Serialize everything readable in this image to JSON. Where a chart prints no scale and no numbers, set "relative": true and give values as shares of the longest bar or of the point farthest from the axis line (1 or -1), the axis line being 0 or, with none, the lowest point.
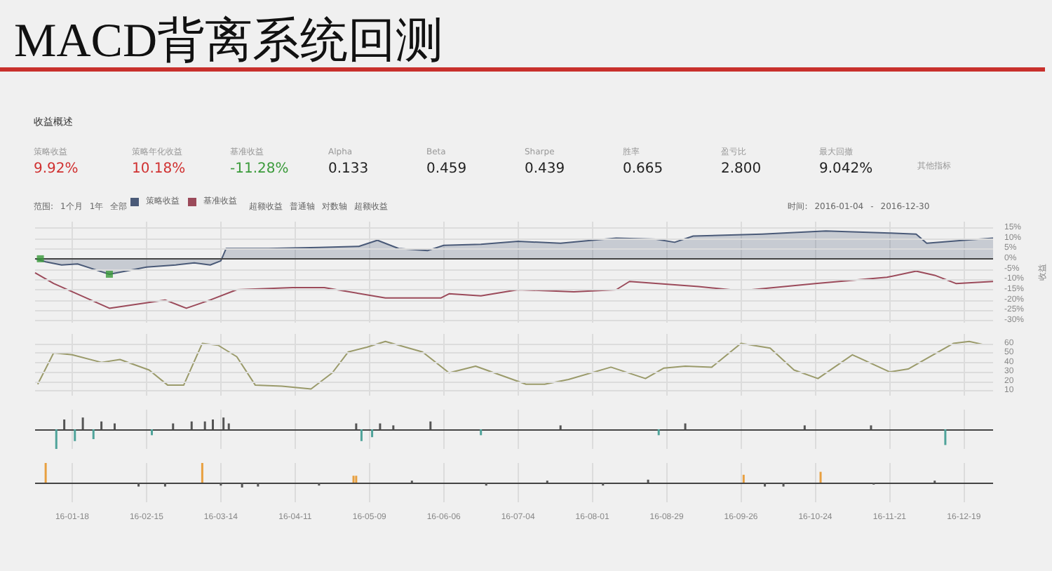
{
  "chart_data": [
    {
      "type": "other",
      "title": "MACD背离系统回测",
      "subtitle": "收益概述",
      "annotations": [
        "策略收益\n9.92%",
        "策略年化收益\n10.18%",
        "基准收益\n-11.28%",
        "Alpha\n0.133",
        "Beta\n0.459",
        "Sharpe\n0.439",
        "胜率\n0.665",
        "盈亏比\n2.800",
        "最大回撤\n9.042%",
        "其他指标"
      ]
    },
    {
      "type": "area",
      "legend": "top left",
      "grid": true,
      "tick_labels": "y",
      "y2label": "收益",
      "annotations": [
        "范围:",
        "1个月",
        "1年",
        "全部",
        "超额收益",
        "普通轴",
        "对数轴",
        "超额收益",
        "时间:",
        "2016-01-04",
        "-",
        "2016-12-30"
      ],
      "xlim": [
        "2016-01-04",
        "2016-12-30"
      ],
      "xticks": [
        "2016-01-18",
        "2016-02-15",
        "2016-03-14",
        "2016-04-11",
        "2016-05-09",
        "2016-06-06",
        "2016-07-04",
        "2016-08-01",
        "2016-08-29",
        "2016-09-26",
        "2016-10-24",
        "2016-11-21",
        "2016-12-19"
      ],
      "ylim": [
        -31,
        18
      ],
      "yticks": [
        {
          "value": -30,
          "label": "-30%"
        },
        {
          "value": -25,
          "label": "-25%"
        },
        {
          "value": -20,
          "label": "-20%"
        },
        {
          "value": -15,
          "label": "-15%"
        },
        {
          "value": -10,
          "label": "-10%"
        },
        {
          "value": -5,
          "label": "-5%"
        },
        {
          "value": 0,
          "label": "0%"
        },
        {
          "value": 5,
          "label": "5%"
        },
        {
          "value": 10,
          "label": "10%"
        },
        {
          "value": 15,
          "label": "15%"
        }
      ],
      "series": [
        {
          "name": "策略收益",
          "color": "#4a5a78",
          "x": [
            "2016-01-04",
            "2016-01-08",
            "2016-01-14",
            "2016-01-20",
            "2016-01-26",
            "2016-02-01",
            "2016-02-15",
            "2016-02-26",
            "2016-03-04",
            "2016-03-10",
            "2016-03-14",
            "2016-03-16",
            "2016-04-01",
            "2016-04-20",
            "2016-05-05",
            "2016-05-12",
            "2016-05-20",
            "2016-05-31",
            "2016-06-06",
            "2016-06-20",
            "2016-07-04",
            "2016-07-20",
            "2016-08-01",
            "2016-08-10",
            "2016-08-25",
            "2016-09-01",
            "2016-09-08",
            "2016-10-04",
            "2016-10-28",
            "2016-11-21",
            "2016-12-01",
            "2016-12-05",
            "2016-12-19",
            "2016-12-30"
          ],
          "values": [
            0,
            -1.5,
            -3,
            -2.5,
            -5,
            -7.5,
            -4,
            -3,
            -2,
            -3,
            -1,
            5,
            5,
            5.5,
            6,
            9,
            5,
            4,
            6.5,
            7,
            8.5,
            7.5,
            9,
            10,
            9.5,
            8,
            11,
            12,
            13.5,
            12.5,
            12,
            7.5,
            9,
            10
          ]
        },
        {
          "name": "基准收益",
          "type": "line",
          "color": "#9b4a5a",
          "x": [
            "2016-01-04",
            "2016-01-11",
            "2016-02-01",
            "2016-02-22",
            "2016-03-01",
            "2016-03-10",
            "2016-03-20",
            "2016-04-10",
            "2016-04-22",
            "2016-05-15",
            "2016-06-05",
            "2016-06-08",
            "2016-06-20",
            "2016-07-04",
            "2016-07-25",
            "2016-08-10",
            "2016-08-15",
            "2016-09-10",
            "2016-09-22",
            "2016-09-30",
            "2016-10-24",
            "2016-11-20",
            "2016-12-01",
            "2016-12-08",
            "2016-12-16",
            "2016-12-30"
          ],
          "values": [
            -6.8,
            -12,
            -24,
            -20,
            -24,
            -20,
            -15,
            -14,
            -14,
            -19,
            -19,
            -17,
            -18,
            -15,
            -16,
            -15,
            -11,
            -13.5,
            -15,
            -15,
            -12,
            -9,
            -6,
            -8,
            -12,
            -11
          ]
        },
        {
          "type": "scatter",
          "marker": "square",
          "color": "#3a9a3a",
          "x": [
            "2016-01-06",
            "2016-02-01"
          ],
          "values": [
            0,
            -7.5
          ]
        }
      ]
    },
    {
      "type": "line",
      "grid": true,
      "tick_labels": "y",
      "xlim": [
        "2016-01-04",
        "2016-12-30"
      ],
      "xticks": [
        "2016-01-18",
        "2016-02-15",
        "2016-03-14",
        "2016-04-11",
        "2016-05-09",
        "2016-06-06",
        "2016-07-04",
        "2016-08-01",
        "2016-08-29",
        "2016-09-26",
        "2016-10-24",
        "2016-11-21",
        "2016-12-19"
      ],
      "ylim": [
        5,
        70
      ],
      "yticks": [
        10,
        20,
        30,
        40,
        50,
        60
      ],
      "series": [
        {
          "color": "#9a9a6a",
          "x": [
            "2016-01-05",
            "2016-01-11",
            "2016-01-18",
            "2016-01-29",
            "2016-02-05",
            "2016-02-16",
            "2016-02-23",
            "2016-02-29",
            "2016-03-07",
            "2016-03-13",
            "2016-03-20",
            "2016-03-27",
            "2016-04-06",
            "2016-04-17",
            "2016-04-25",
            "2016-05-01",
            "2016-05-08",
            "2016-05-15",
            "2016-05-29",
            "2016-06-08",
            "2016-06-18",
            "2016-06-30",
            "2016-07-07",
            "2016-07-14",
            "2016-07-23",
            "2016-08-08",
            "2016-08-21",
            "2016-08-28",
            "2016-09-05",
            "2016-09-15",
            "2016-09-26",
            "2016-10-07",
            "2016-10-16",
            "2016-10-25",
            "2016-11-07",
            "2016-11-21",
            "2016-11-28",
            "2016-12-15",
            "2016-12-21",
            "2016-12-26"
          ],
          "values": [
            17,
            50,
            48,
            40,
            43,
            32,
            16,
            16,
            60,
            58,
            46,
            16,
            15,
            12,
            29,
            51,
            56,
            62,
            51,
            29,
            36,
            24,
            17,
            17,
            22,
            35,
            23,
            34,
            36,
            35,
            60,
            55,
            32,
            23,
            48,
            30,
            33,
            60,
            62,
            59
          ]
        }
      ]
    },
    {
      "type": "bar",
      "relative": true,
      "grid": "x",
      "tick_labels": false,
      "xlim": [
        "2016-01-04",
        "2016-12-30"
      ],
      "xticks": [
        "2016-01-18",
        "2016-02-15",
        "2016-03-14",
        "2016-04-11",
        "2016-05-09",
        "2016-06-06",
        "2016-07-04",
        "2016-08-01",
        "2016-08-29",
        "2016-09-26",
        "2016-10-24",
        "2016-11-21",
        "2016-12-19"
      ],
      "x": [
        "2016-01-12",
        "2016-01-15",
        "2016-01-19",
        "2016-01-22",
        "2016-01-26",
        "2016-01-29",
        "2016-02-03",
        "2016-02-17",
        "2016-02-25",
        "2016-03-03",
        "2016-03-08",
        "2016-03-11",
        "2016-03-15",
        "2016-03-17",
        "2016-05-04",
        "2016-05-06",
        "2016-05-10",
        "2016-05-13",
        "2016-05-18",
        "2016-06-01",
        "2016-06-20",
        "2016-07-20",
        "2016-08-26",
        "2016-09-05",
        "2016-10-20",
        "2016-11-14",
        "2016-12-12"
      ],
      "values": [
        -1,
        0.5,
        -0.6,
        0.6,
        -0.5,
        0.4,
        0.3,
        -0.3,
        0.3,
        0.4,
        0.4,
        0.5,
        0.6,
        0.3,
        0.3,
        -0.6,
        -0.4,
        0.3,
        0.2,
        0.4,
        -0.3,
        0.2,
        -0.3,
        0.3,
        0.2,
        0.2,
        -0.8
      ],
      "colors": [
        "#4fa39a",
        "#555555",
        "#4fa39a",
        "#555555",
        "#4fa39a",
        "#555555",
        "#555555",
        "#4fa39a",
        "#555555",
        "#555555",
        "#555555",
        "#555555",
        "#555555",
        "#555555",
        "#555555",
        "#4fa39a",
        "#4fa39a",
        "#555555",
        "#555555",
        "#555555",
        "#4fa39a",
        "#555555",
        "#4fa39a",
        "#555555",
        "#555555",
        "#555555",
        "#4fa39a"
      ]
    },
    {
      "type": "bar",
      "relative": true,
      "grid": "x",
      "tick_labels": "x",
      "xlim": [
        "2016-01-04",
        "2016-12-30"
      ],
      "xticks": [
        {
          "value": "2016-01-18",
          "label": "16-01-18"
        },
        {
          "value": "2016-02-15",
          "label": "16-02-15"
        },
        {
          "value": "2016-03-14",
          "label": "16-03-14"
        },
        {
          "value": "2016-04-11",
          "label": "16-04-11"
        },
        {
          "value": "2016-05-09",
          "label": "16-05-09"
        },
        {
          "value": "2016-06-06",
          "label": "16-06-06"
        },
        {
          "value": "2016-07-04",
          "label": "16-07-04"
        },
        {
          "value": "2016-08-01",
          "label": "16-08-01"
        },
        {
          "value": "2016-08-29",
          "label": "16-08-29"
        },
        {
          "value": "2016-09-26",
          "label": "16-09-26"
        },
        {
          "value": "2016-10-24",
          "label": "16-10-24"
        },
        {
          "value": "2016-11-21",
          "label": "16-11-21"
        },
        {
          "value": "2016-12-19",
          "label": "16-12-19"
        }
      ],
      "x": [
        "2016-01-08",
        "2016-02-12",
        "2016-02-22",
        "2016-03-07",
        "2016-03-14",
        "2016-03-22",
        "2016-03-28",
        "2016-04-20",
        "2016-05-03",
        "2016-05-04",
        "2016-05-25",
        "2016-06-22",
        "2016-07-15",
        "2016-08-05",
        "2016-08-22",
        "2016-09-27",
        "2016-10-05",
        "2016-10-12",
        "2016-10-26",
        "2016-11-15",
        "2016-12-08"
      ],
      "values": [
        1,
        -0.2,
        -0.2,
        1,
        -0.15,
        -0.25,
        -0.2,
        -0.15,
        0.35,
        0.35,
        0.1,
        -0.15,
        0.1,
        -0.15,
        0.15,
        0.4,
        -0.2,
        -0.2,
        0.55,
        -0.1,
        0.1
      ],
      "colors": [
        "#e8a040",
        "#555555",
        "#555555",
        "#e8a040",
        "#555555",
        "#555555",
        "#555555",
        "#555555",
        "#e8a040",
        "#e8a040",
        "#555555",
        "#555555",
        "#555555",
        "#555555",
        "#555555",
        "#e8a040",
        "#555555",
        "#555555",
        "#e8a040",
        "#555555",
        "#555555"
      ]
    }
  ]
}
